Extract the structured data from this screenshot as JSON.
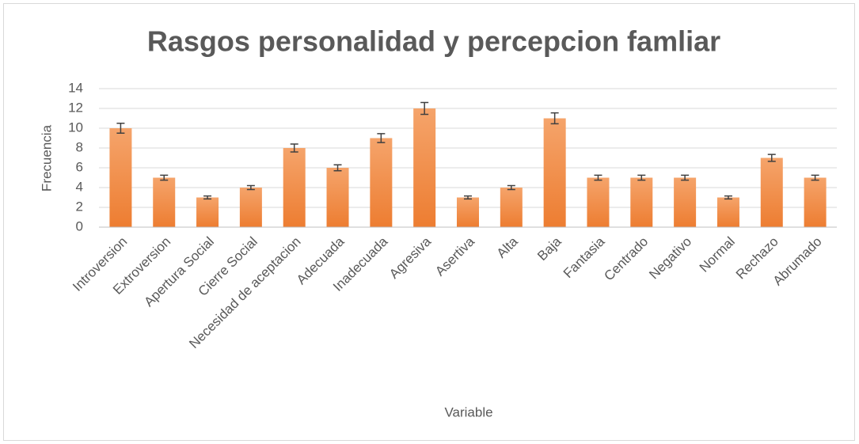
{
  "chart_data": {
    "type": "bar",
    "title": "Rasgos personalidad y percepcion famliar",
    "x_label": "Variable",
    "y_label": "Frecuencia",
    "categories": [
      "Introversion",
      "Extroversion",
      "Apertura Social",
      "Cierre Social",
      "Necesidad de aceptacion",
      "Adecuada",
      "Inadecuada",
      "Agresiva",
      "Asertiva",
      "Alta",
      "Baja",
      "Fantasia",
      "Centrado",
      "Negativo",
      "Normal",
      "Rechazo",
      "Abrumado"
    ],
    "values": [
      10,
      5,
      3,
      4,
      8,
      6,
      9,
      12,
      3,
      4,
      11,
      5,
      5,
      5,
      3,
      7,
      5
    ],
    "errors": [
      0.5,
      0.25,
      0.15,
      0.2,
      0.4,
      0.3,
      0.45,
      0.6,
      0.15,
      0.2,
      0.55,
      0.25,
      0.25,
      0.25,
      0.15,
      0.35,
      0.25
    ],
    "color": "#ed7d31",
    "ylim": [
      0,
      14
    ],
    "yticks": [
      0,
      2,
      4,
      6,
      8,
      10,
      12,
      14
    ],
    "grid": true
  }
}
